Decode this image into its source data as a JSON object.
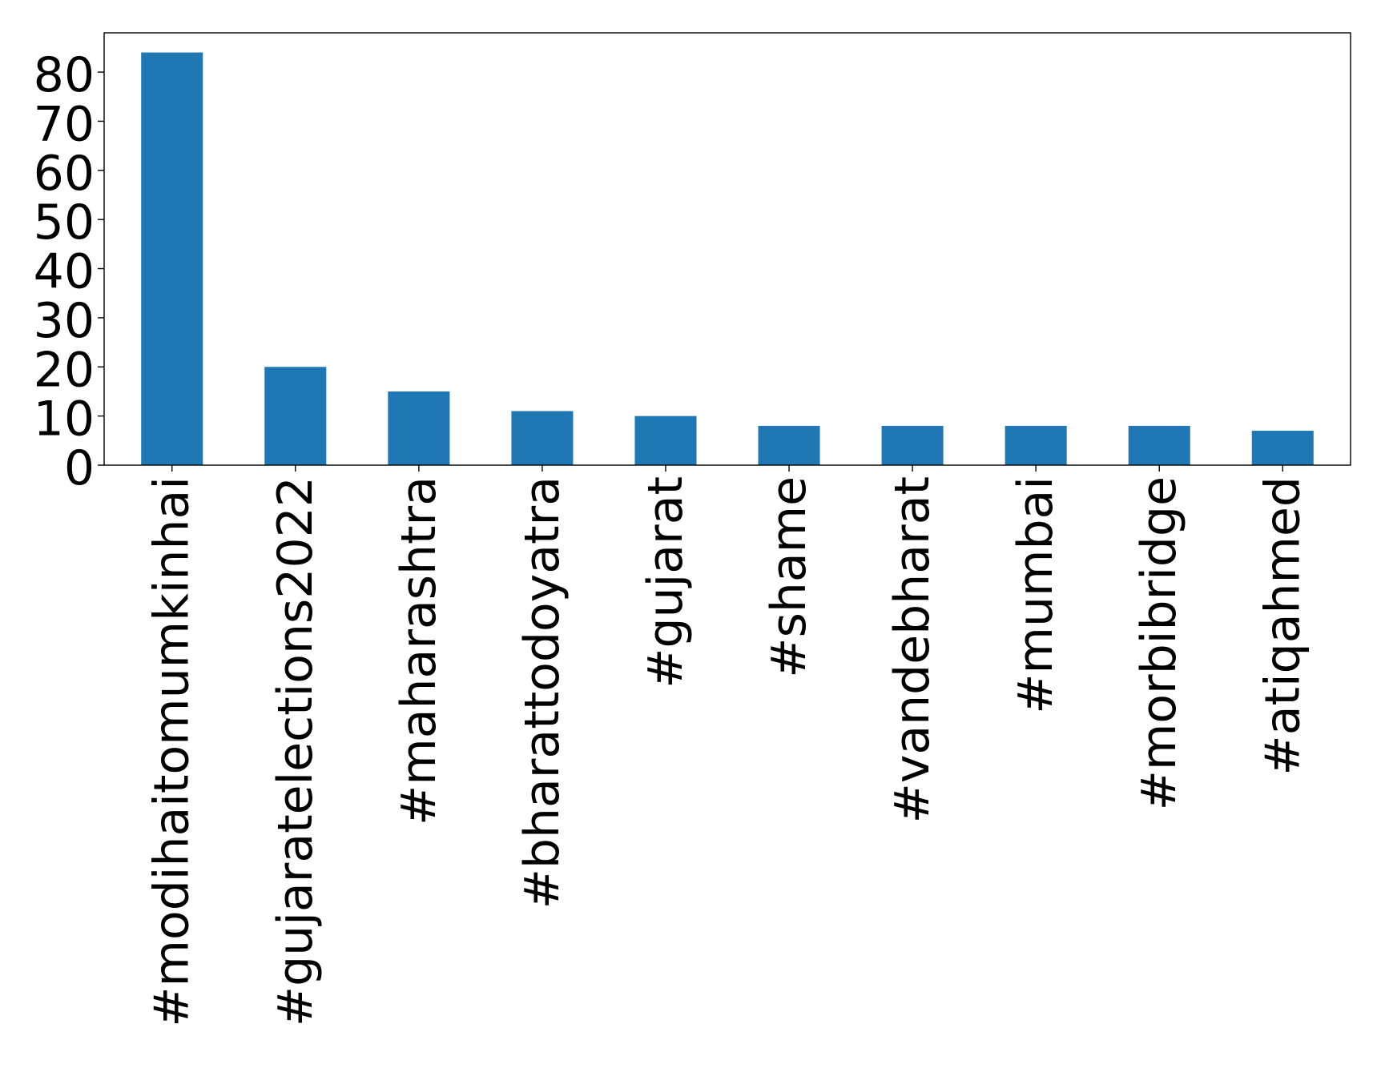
{
  "chart_data": {
    "type": "bar",
    "title": "",
    "xlabel": "",
    "ylabel": "",
    "categories": [
      "#modihaitomumkinhai",
      "#gujaratelections2022",
      "#maharashtra",
      "#bharattodoyatra",
      "#gujarat",
      "#shame",
      "#vandebharat",
      "#mumbai",
      "#morbibridge",
      "#atiqahmed"
    ],
    "values": [
      84,
      20,
      15,
      11,
      10,
      8,
      8,
      8,
      8,
      7
    ],
    "ylim": [
      0,
      88
    ],
    "yticks": [
      0,
      10,
      20,
      30,
      40,
      50,
      60,
      70,
      80
    ],
    "ytick_labels": [
      "0",
      "10",
      "20",
      "30",
      "40",
      "50",
      "60",
      "70",
      "80"
    ],
    "grid": false,
    "legend": "none",
    "bar_color": "#1f77b4",
    "axis_color": "#000000",
    "background_color": "#ffffff"
  }
}
